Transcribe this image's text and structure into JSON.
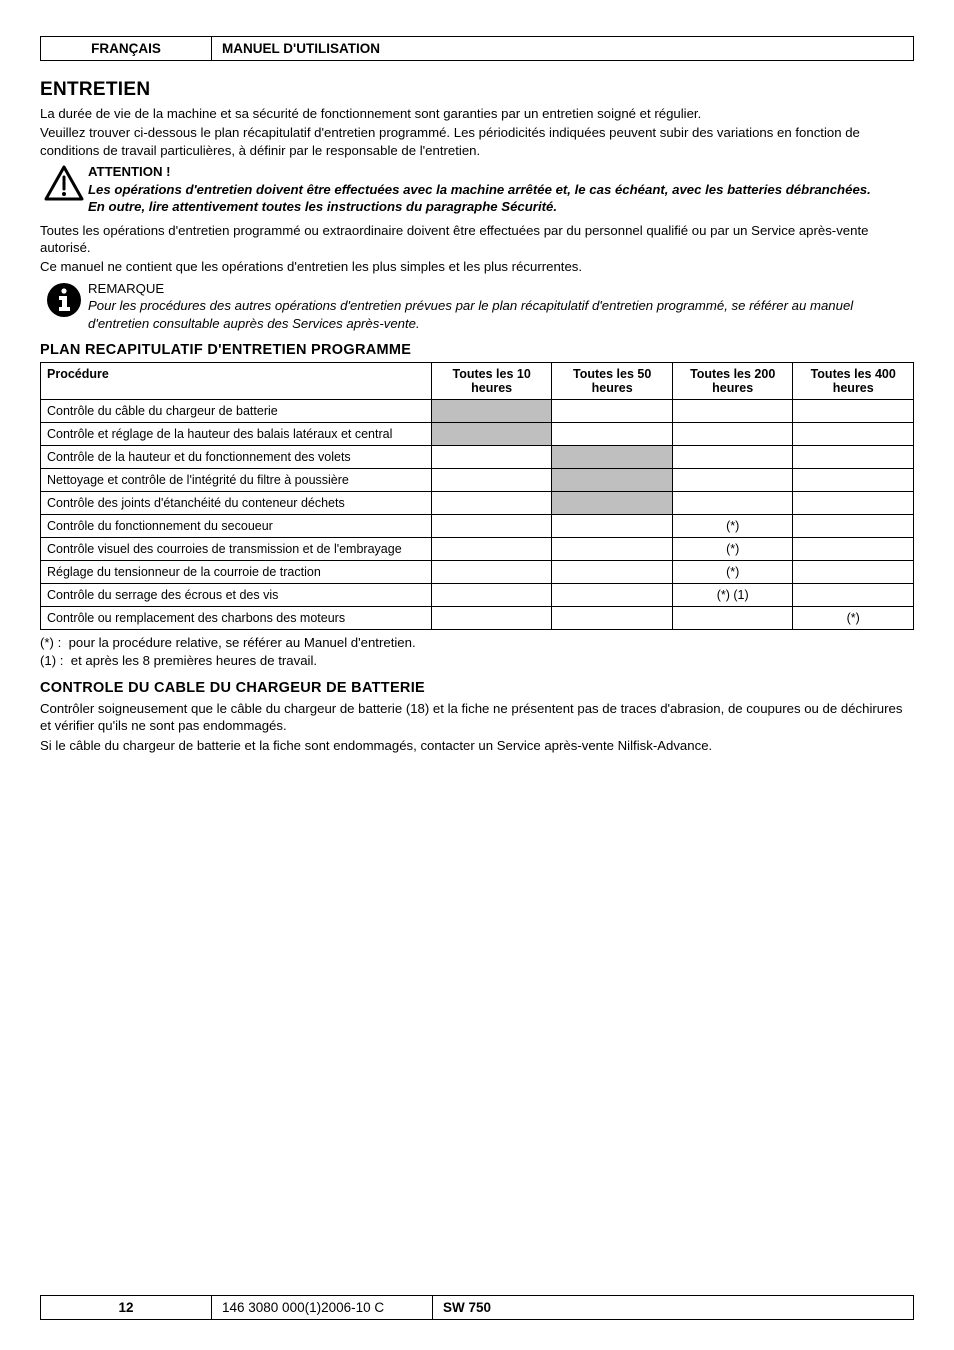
{
  "header": {
    "language": "FRANÇAIS",
    "manual": "MANUEL D'UTILISATION"
  },
  "title": "ENTRETIEN",
  "intro": {
    "p1": "La durée de vie de la machine et sa sécurité de fonctionnement sont garanties par un entretien soigné et régulier.",
    "p2": "Veuillez trouver ci-dessous le plan récapitulatif d'entretien programmé. Les périodicités indiquées peuvent subir des variations en fonction de conditions de travail particulières, à définir par le responsable de l'entretien."
  },
  "warning": {
    "title": "ATTENTION !",
    "l1": "Les opérations d'entretien doivent être effectuées avec la machine arrêtée et, le cas échéant, avec les batteries débranchées.",
    "l2": "En outre, lire attentivement toutes les instructions du paragraphe Sécurité."
  },
  "mid": {
    "p1": "Toutes les opérations d'entretien programmé ou extraordinaire doivent être effectuées par du personnel qualifié ou par un Service après-vente autorisé.",
    "p2": "Ce manuel ne contient que les opérations d'entretien les plus simples et les plus récurrentes."
  },
  "note": {
    "title": "REMARQUE",
    "l1": "Pour les procédures des autres opérations d'entretien prévues par le plan récapitulatif d'entretien programmé, se référer au manuel d'entretien consultable auprès des Services après-vente."
  },
  "tableTitle": "PLAN RECAPITULATIF D'ENTRETIEN PROGRAMME",
  "table": {
    "headers": {
      "proc": "Procédure",
      "h10": "Toutes les 10 heures",
      "h50": "Toutes les 50 heures",
      "h200": "Toutes les 200 heures",
      "h400": "Toutes les 400 heures"
    },
    "rows": [
      {
        "proc": "Contrôle du câble du chargeur de batterie",
        "h10": "",
        "h50": "",
        "h200": "",
        "h400": "",
        "shade": [
          "h10"
        ]
      },
      {
        "proc": "Contrôle et réglage de la hauteur des balais latéraux et central",
        "h10": "",
        "h50": "",
        "h200": "",
        "h400": "",
        "shade": [
          "h10"
        ]
      },
      {
        "proc": "Contrôle de la hauteur et du fonctionnement des volets",
        "h10": "",
        "h50": "",
        "h200": "",
        "h400": "",
        "shade": [
          "h50"
        ]
      },
      {
        "proc": "Nettoyage et contrôle de l'intégrité du filtre à poussière",
        "h10": "",
        "h50": "",
        "h200": "",
        "h400": "",
        "shade": [
          "h50"
        ]
      },
      {
        "proc": "Contrôle des joints d'étanchéité du conteneur déchets",
        "h10": "",
        "h50": "",
        "h200": "",
        "h400": "",
        "shade": [
          "h50"
        ]
      },
      {
        "proc": "Contrôle du fonctionnement du secoueur",
        "h10": "",
        "h50": "",
        "h200": "(*)",
        "h400": "",
        "shade": []
      },
      {
        "proc": "Contrôle visuel des courroies de transmission et de l'embrayage",
        "h10": "",
        "h50": "",
        "h200": "(*)",
        "h400": "",
        "shade": []
      },
      {
        "proc": "Réglage du tensionneur de la courroie de traction",
        "h10": "",
        "h50": "",
        "h200": "(*)",
        "h400": "",
        "shade": []
      },
      {
        "proc": "Contrôle du serrage des écrous et des vis",
        "h10": "",
        "h50": "",
        "h200": "(*) (1)",
        "h400": "",
        "shade": []
      },
      {
        "proc": "Contrôle ou remplacement des charbons des moteurs",
        "h10": "",
        "h50": "",
        "h200": "",
        "h400": "(*)",
        "shade": []
      }
    ]
  },
  "footnotes": {
    "f1": "(*) :  pour la procédure relative, se référer au Manuel d'entretien.",
    "f2": "(1) :  et après les 8 premières heures de travail."
  },
  "section2": {
    "title": "CONTROLE DU CABLE DU CHARGEUR DE BATTERIE",
    "p1": "Contrôler soigneusement que le câble du chargeur de batterie (18) et la fiche ne présentent pas de traces d'abrasion, de coupures ou de déchirures et vérifier qu'ils ne sont pas endommagés.",
    "p2": "Si le câble du chargeur de batterie et la fiche sont endommagés, contacter un Service après-vente Nilfisk-Advance."
  },
  "footer": {
    "page": "12",
    "code": "146 3080 000(1)2006-10 C",
    "model": "SW 750"
  },
  "style": {
    "shade_color": "#bfbfbf"
  }
}
